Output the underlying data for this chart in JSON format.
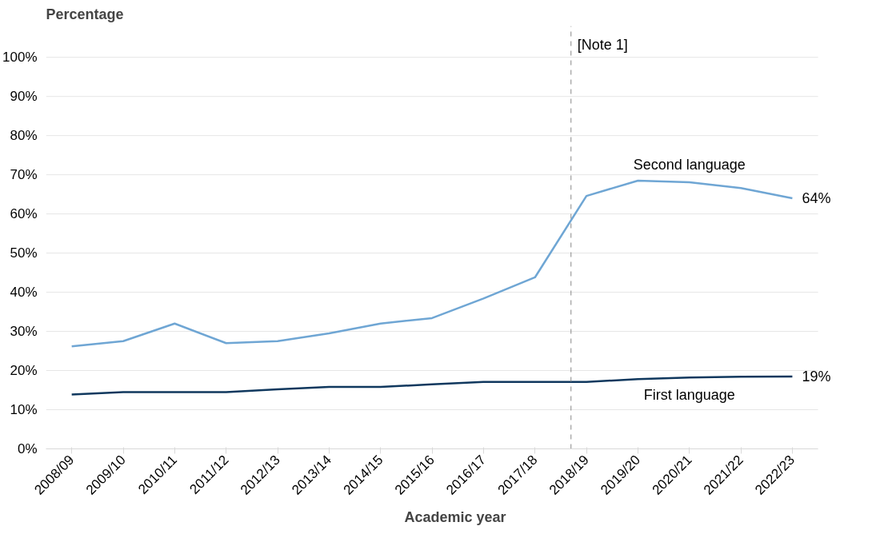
{
  "chart_data": {
    "type": "line",
    "xlabel": "Academic year",
    "ylabel": "Percentage",
    "categories": [
      "2008/09",
      "2009/10",
      "2010/11",
      "2011/12",
      "2012/13",
      "2013/14",
      "2014/15",
      "2015/16",
      "2016/17",
      "2017/18",
      "2018/19",
      "2019/20",
      "2020/21",
      "2021/22",
      "2022/23"
    ],
    "series": [
      {
        "name": "Second language",
        "color": "#6fa6d4",
        "values": [
          26.2,
          27.5,
          32,
          27,
          27.5,
          29.5,
          32,
          33.4,
          38.4,
          43.8,
          64.6,
          68.5,
          68.1,
          66.6,
          64
        ],
        "value_labels": [
          null,
          null,
          null,
          null,
          null,
          null,
          null,
          null,
          null,
          null,
          null,
          null,
          null,
          null,
          "64%"
        ]
      },
      {
        "name": "First language",
        "color": "#10385e",
        "values": [
          13.9,
          14.5,
          14.5,
          14.5,
          15.2,
          15.8,
          15.8,
          16.5,
          17.1,
          17.1,
          17.1,
          17.8,
          18.2,
          18.4,
          18.5
        ],
        "value_labels": [
          null,
          null,
          null,
          null,
          null,
          null,
          null,
          null,
          null,
          null,
          null,
          null,
          null,
          null,
          "19%"
        ]
      }
    ],
    "ylim": [
      0,
      100
    ],
    "yticks": [
      {
        "value": 0,
        "label": "0%"
      },
      {
        "value": 10,
        "label": "10%"
      },
      {
        "value": 20,
        "label": "20%"
      },
      {
        "value": 30,
        "label": "30%"
      },
      {
        "value": 40,
        "label": "40%"
      },
      {
        "value": 50,
        "label": "50%"
      },
      {
        "value": 60,
        "label": "60%"
      },
      {
        "value": 70,
        "label": "70%"
      },
      {
        "value": 80,
        "label": "80%"
      },
      {
        "value": 90,
        "label": "90%"
      },
      {
        "value": 100,
        "label": "100%"
      }
    ],
    "grid": "y",
    "legend": false,
    "marker": "none",
    "line_style": "solid",
    "ref_lines": [
      {
        "axis": "x",
        "value": "2018/19",
        "label": "[Note 1]",
        "color": "#888888",
        "line_style": "dashed"
      }
    ]
  }
}
